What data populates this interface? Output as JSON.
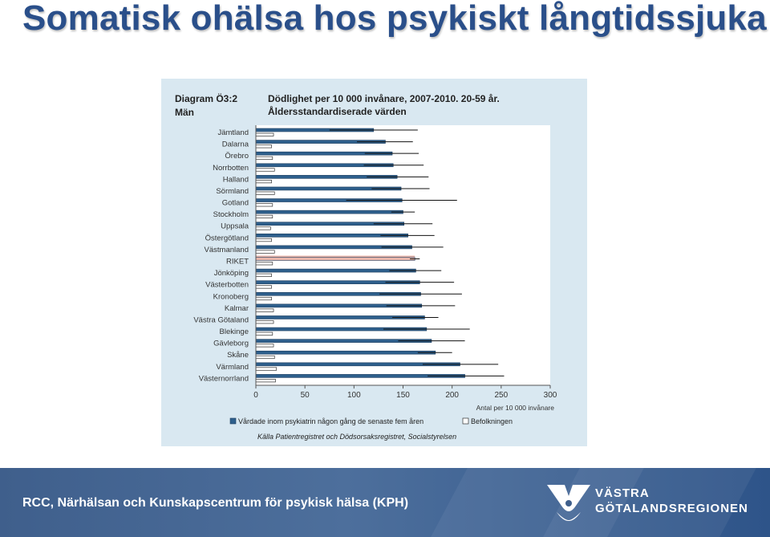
{
  "slide": {
    "title": "Somatisk ohälsa hos psykiskt långtidssjuka",
    "footer_text": "RCC, Närhälsan och Kunskapscentrum för psykisk hälsa (KPH)",
    "logo": {
      "line1": "VÄSTRA",
      "line2": "GÖTALANDSREGIONEN"
    }
  },
  "colors": {
    "title": "#2a4f8a",
    "panel": "#d9e8f1",
    "series_psych": "#2e5f8c",
    "series_pop": "#ffffff",
    "riket": "#e9b7ac"
  },
  "chart_data": {
    "type": "bar",
    "orientation": "horizontal",
    "diagram_label": "Diagram Ö3:2",
    "diagram_sublabel": "Män",
    "title": "Dödlighet per 10 000 invånare, 2007-2010. 20-59 år.",
    "subtitle": "Åldersstandardiserade värden",
    "xlabel": "Antal per 10 000 invånare",
    "xlim": [
      0,
      300
    ],
    "xticks": [
      0,
      50,
      100,
      150,
      200,
      250,
      300
    ],
    "grid": false,
    "legend_position": "bottom",
    "source": "Källa Patientregistret och Dödsorsaksregistret, Socialstyrelsen",
    "highlight_category": "RIKET",
    "categories": [
      "Jämtland",
      "Dalarna",
      "Örebro",
      "Norrbotten",
      "Halland",
      "Sörmland",
      "Gotland",
      "Stockholm",
      "Uppsala",
      "Östergötland",
      "Västmanland",
      "RIKET",
      "Jönköping",
      "Västerbotten",
      "Kronoberg",
      "Kalmar",
      "Västra Götaland",
      "Blekinge",
      "Gävleborg",
      "Skåne",
      "Värmland",
      "Västernorrland"
    ],
    "series": [
      {
        "name": "Vårdade inom psykiatrin någon gång de senaste fem åren",
        "values": [
          120,
          132,
          139,
          140,
          144,
          148,
          149,
          150,
          151,
          155,
          159,
          162,
          163,
          167,
          168,
          169,
          172,
          174,
          179,
          183,
          208,
          213
        ],
        "error_low": [
          75,
          103,
          111,
          110,
          113,
          118,
          92,
          138,
          120,
          127,
          128,
          157,
          136,
          132,
          126,
          133,
          139,
          130,
          145,
          165,
          170,
          175
        ],
        "error_high": [
          165,
          160,
          166,
          171,
          176,
          177,
          205,
          162,
          180,
          182,
          191,
          167,
          189,
          202,
          210,
          203,
          186,
          218,
          213,
          200,
          247,
          253
        ]
      },
      {
        "name": "Befolkningen",
        "values": [
          18,
          16,
          17,
          19,
          16,
          19,
          17,
          17,
          15,
          16,
          19,
          17,
          16,
          16,
          16,
          18,
          18,
          17,
          18,
          19,
          21,
          20
        ]
      }
    ]
  }
}
